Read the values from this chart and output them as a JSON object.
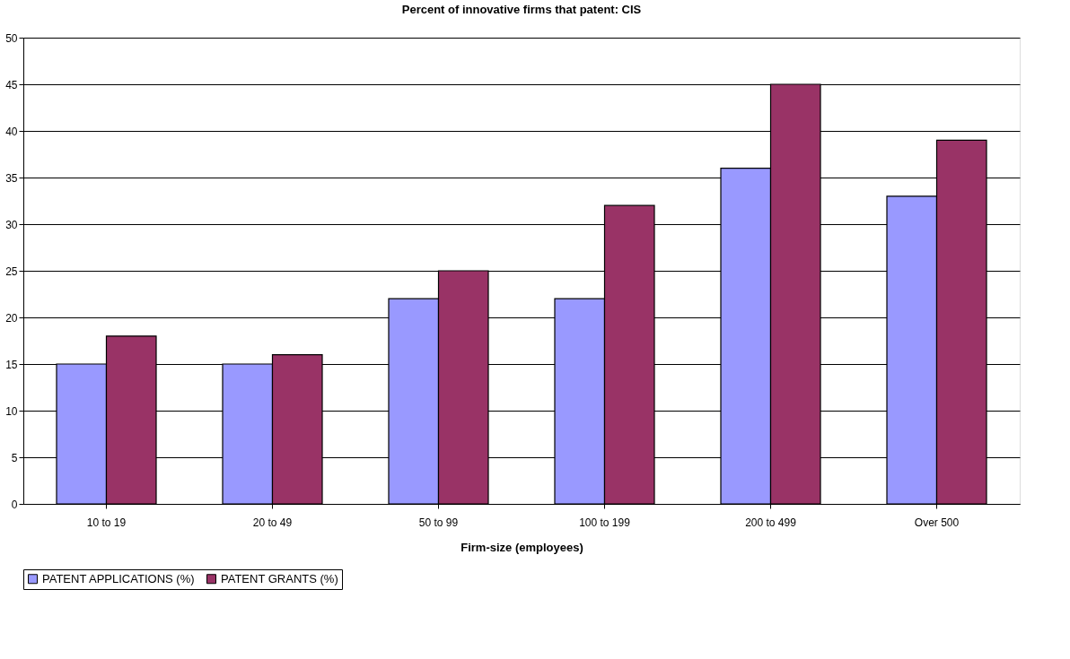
{
  "chart_data": {
    "type": "bar",
    "title": "Percent of innovative firms that patent: CIS",
    "xlabel": "Firm-size (employees)",
    "categories": [
      "10 to 19",
      "20 to 49",
      "50 to 99",
      "100 to 199",
      "200 to 499",
      "Over 500"
    ],
    "series": [
      {
        "name": "PATENT APPLICATIONS (%)",
        "color": "#9999ff",
        "values": [
          15,
          15,
          22,
          22,
          36,
          33
        ]
      },
      {
        "name": "PATENT GRANTS (%)",
        "color": "#993366",
        "values": [
          18,
          16,
          25,
          32,
          45,
          39
        ]
      }
    ],
    "ylim": [
      0,
      50
    ],
    "yticks": [
      0,
      5,
      10,
      15,
      20,
      25,
      30,
      35,
      40,
      45,
      50
    ],
    "grid": "y",
    "legend": "bottom"
  }
}
